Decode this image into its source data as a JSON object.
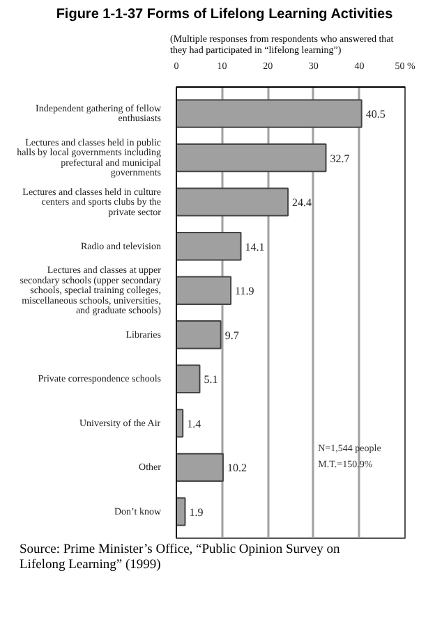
{
  "chart_data": {
    "type": "bar",
    "orientation": "horizontal",
    "title": "Figure 1-1-37 Forms of Lifelong Learning Activities",
    "subtitle": "(Multiple responses from respondents who answered that they had participated in “lifelong learning”)",
    "categories": [
      "Independent gathering of fellow enthusiasts",
      "Lectures and classes held in public halls by local governments including prefectural and municipal governments",
      "Lectures and classes held in culture centers and sports clubs by the private sector",
      "Radio and television",
      "Lectures and classes at upper secondary schools (upper secondary schools, special training colleges, miscellaneous schools, universities, and graduate schools)",
      "Libraries",
      "Private correspondence schools",
      "University of the Air",
      "Other",
      "Don’t know"
    ],
    "values": [
      40.5,
      32.7,
      24.4,
      14.1,
      11.9,
      9.7,
      5.1,
      1.4,
      10.2,
      1.9
    ],
    "color": "#a0a0a0",
    "data_labels": true,
    "xlim": [
      0,
      50
    ],
    "xticks": [
      0,
      10,
      20,
      30,
      40,
      {
        "value": 50,
        "label": "50 %"
      }
    ],
    "grid": "x",
    "annotations": [
      "N=1,544 people",
      "M.T.=150.9%",
      "Source: Prime Minister’s Office, “Public Opinion Survey on Lifelong Learning” (1999)"
    ]
  }
}
